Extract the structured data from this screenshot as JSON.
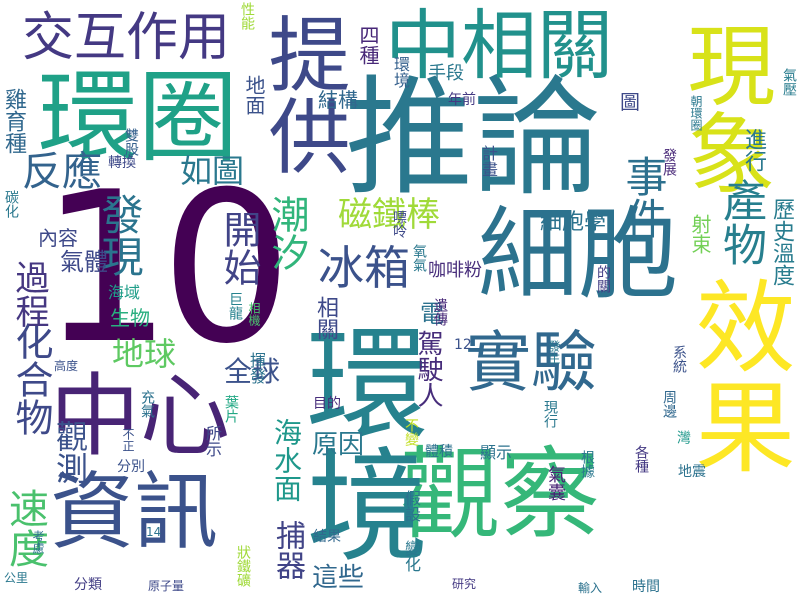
{
  "words": [
    {
      "text": "10",
      "color": "#440154"
    },
    {
      "text": "推論",
      "color": "#2a788e"
    },
    {
      "text": "細胞",
      "color": "#2c728e"
    },
    {
      "text": "實驗",
      "color": "#31688e"
    },
    {
      "text": "觀察",
      "color": "#35b779"
    },
    {
      "text": "環境",
      "color": "#26828e"
    },
    {
      "text": "資訊",
      "color": "#3b528b"
    },
    {
      "text": "中心",
      "color": "#482475"
    },
    {
      "text": "提供",
      "color": "#3e4989"
    },
    {
      "text": "中相關",
      "color": "#21918c"
    },
    {
      "text": "環圈",
      "color": "#1fa187"
    },
    {
      "text": "效果",
      "color": "#fde725"
    },
    {
      "text": "現象",
      "color": "#d8e219"
    },
    {
      "text": "交互作用",
      "color": "#443983"
    },
    {
      "text": "事件",
      "color": "#2d708e"
    },
    {
      "text": "產物",
      "color": "#277f8e"
    },
    {
      "text": "發現",
      "color": "#2b748e"
    },
    {
      "text": "冰箱",
      "color": "#3b528b"
    },
    {
      "text": "磁鐵棒",
      "color": "#a0da39"
    },
    {
      "text": "開始",
      "color": "#414487"
    },
    {
      "text": "潮汐",
      "color": "#31b57b"
    },
    {
      "text": "反應",
      "color": "#33638d"
    },
    {
      "text": "如圖",
      "color": "#2a788e"
    },
    {
      "text": "化合物",
      "color": "#3e4989"
    },
    {
      "text": "過程",
      "color": "#453781"
    },
    {
      "text": "地球",
      "color": "#5ec962"
    },
    {
      "text": "觀測",
      "color": "#3b528b"
    },
    {
      "text": "速度",
      "color": "#4ac16d"
    },
    {
      "text": "捕器",
      "color": "#414487"
    },
    {
      "text": "這些",
      "color": "#31688e"
    },
    {
      "text": "原因",
      "color": "#2a788e"
    },
    {
      "text": "全球",
      "color": "#3b528b"
    },
    {
      "text": "海水面",
      "color": "#1f988b"
    },
    {
      "text": "駕駛人",
      "color": "#472d7b"
    },
    {
      "text": "電",
      "color": "#2c728e"
    },
    {
      "text": "相關",
      "color": "#3e4989"
    },
    {
      "text": "細胞學",
      "color": "#2c728e"
    },
    {
      "text": "射束",
      "color": "#73d056"
    },
    {
      "text": "進行",
      "color": "#2a788e"
    },
    {
      "text": "歷史溫度",
      "color": "#287c8e"
    },
    {
      "text": "雞育種",
      "color": "#31688e"
    },
    {
      "text": "內容",
      "color": "#3e4989"
    },
    {
      "text": "氣體",
      "color": "#3e4989"
    },
    {
      "text": "生物",
      "color": "#29af7f"
    },
    {
      "text": "海域",
      "color": "#1f9e89"
    },
    {
      "text": "四種",
      "color": "#482878"
    },
    {
      "text": "手段",
      "color": "#2a788e"
    },
    {
      "text": "結構",
      "color": "#31688e"
    },
    {
      "text": "地面",
      "color": "#3b528b"
    },
    {
      "text": "咖啡粉",
      "color": "#472d7b"
    },
    {
      "text": "圖",
      "color": "#3e4989"
    },
    {
      "text": "計畫",
      "color": "#3b528b"
    },
    {
      "text": "環境",
      "color": "#35608d"
    },
    {
      "text": "年前",
      "color": "#443983"
    },
    {
      "text": "發展",
      "color": "#482878"
    },
    {
      "text": "氣壓",
      "color": "#287c8e"
    },
    {
      "text": "朝環圈",
      "color": "#2a788e"
    },
    {
      "text": "性能",
      "color": "#a0da39"
    },
    {
      "text": "雙股",
      "color": "#35608d"
    },
    {
      "text": "轉換",
      "color": "#3e4989"
    },
    {
      "text": "碳化",
      "color": "#2a788e"
    },
    {
      "text": "嘌呤",
      "color": "#3e4989"
    },
    {
      "text": "氧氣",
      "color": "#2a788e"
    },
    {
      "text": "的關",
      "color": "#433e85"
    },
    {
      "text": "系統",
      "color": "#3b528b"
    },
    {
      "text": "周邊",
      "color": "#31688e"
    },
    {
      "text": "灣",
      "color": "#1f988b"
    },
    {
      "text": "地震",
      "color": "#2c728e"
    },
    {
      "text": "各種",
      "color": "#443983"
    },
    {
      "text": "根據",
      "color": "#2a788e"
    },
    {
      "text": "顯示",
      "color": "#2c728e"
    },
    {
      "text": "體積",
      "color": "#2c728e"
    },
    {
      "text": "現行",
      "color": "#2a788e"
    },
    {
      "text": "發生",
      "color": "#2a788e"
    },
    {
      "text": "不變",
      "color": "#c2df23"
    },
    {
      "text": "遺傳",
      "color": "#482878"
    },
    {
      "text": "目的",
      "color": "#472d7b"
    },
    {
      "text": "12",
      "color": "#3b528b"
    },
    {
      "text": "巨龍",
      "color": "#26828e"
    },
    {
      "text": "相機",
      "color": "#4ac16d"
    },
    {
      "text": "揮發",
      "color": "#2c728e"
    },
    {
      "text": "葉片",
      "color": "#22a884"
    },
    {
      "text": "所示",
      "color": "#3e4989"
    },
    {
      "text": "充氣",
      "color": "#2c728e"
    },
    {
      "text": "不正",
      "color": "#3b528b"
    },
    {
      "text": "分別",
      "color": "#3b528b"
    },
    {
      "text": "高度",
      "color": "#3b528b"
    },
    {
      "text": "14",
      "color": "#2c728e"
    },
    {
      "text": "考慮",
      "color": "#2c728e"
    },
    {
      "text": "公里",
      "color": "#2a788e"
    },
    {
      "text": "分類",
      "color": "#433e85"
    },
    {
      "text": "原子量",
      "color": "#3e4989"
    },
    {
      "text": "狀鐵礦",
      "color": "#a0da39"
    },
    {
      "text": "結果",
      "color": "#31688e"
    },
    {
      "text": "假設",
      "color": "#2c728e"
    },
    {
      "text": "變化",
      "color": "#2a788e"
    },
    {
      "text": "研究",
      "color": "#443983"
    },
    {
      "text": "氣囊",
      "color": "#482475"
    },
    {
      "text": "輸入",
      "color": "#2c728e"
    },
    {
      "text": "時間",
      "color": "#2c728e"
    }
  ]
}
